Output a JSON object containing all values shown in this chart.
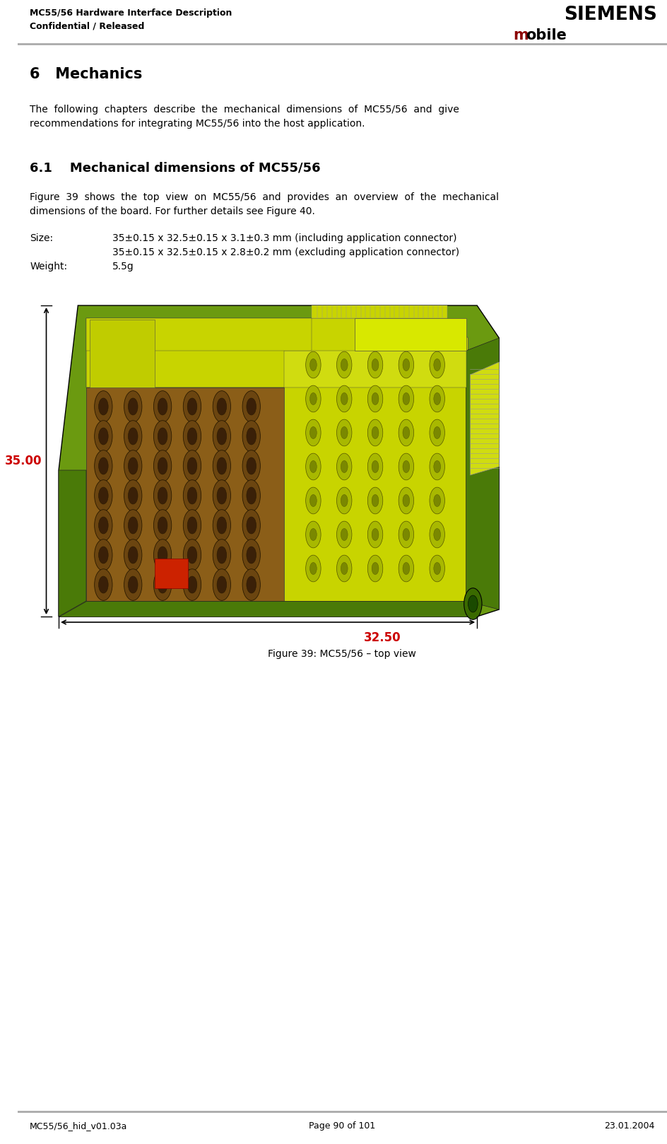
{
  "header_left_line1": "MC55/56 Hardware Interface Description",
  "header_left_line2": "Confidential / Released",
  "header_right_siemens": "SIEMENS",
  "header_mobile_m_color": "#8B0000",
  "header_line_color": "#AAAAAA",
  "footer_left": "MC55/56_hid_v01.03a",
  "footer_center": "Page 90 of 101",
  "footer_right": "23.01.2004",
  "footer_line_color": "#AAAAAA",
  "section_title": "6   Mechanics",
  "section_body_line1": "The  following  chapters  describe  the  mechanical  dimensions  of  MC55/56  and  give",
  "section_body_line2": "recommendations for integrating MC55/56 into the host application.",
  "subsection_title": "6.1    Mechanical dimensions of MC55/56",
  "subsection_body_line1": "Figure  39  shows  the  top  view  on  MC55/56  and  provides  an  overview  of  the  mechanical",
  "subsection_body_line2": "dimensions of the board. For further details see Figure 40.",
  "size_label": "Size:",
  "size_value_line1": "35±0.15 x 32.5±0.15 x 3.1±0.3 mm (including application connector)",
  "size_value_line2": "35±0.15 x 32.5±0.15 x 2.8±0.2 mm (excluding application connector)",
  "weight_label": "Weight:",
  "weight_value": "5.5g",
  "figure_caption": "Figure 39: MC55/56 – top view",
  "bg_color": "#FFFFFF",
  "dim_35_label": "35.00",
  "dim_32_label": "32.50",
  "dim_color": "#CC0000"
}
